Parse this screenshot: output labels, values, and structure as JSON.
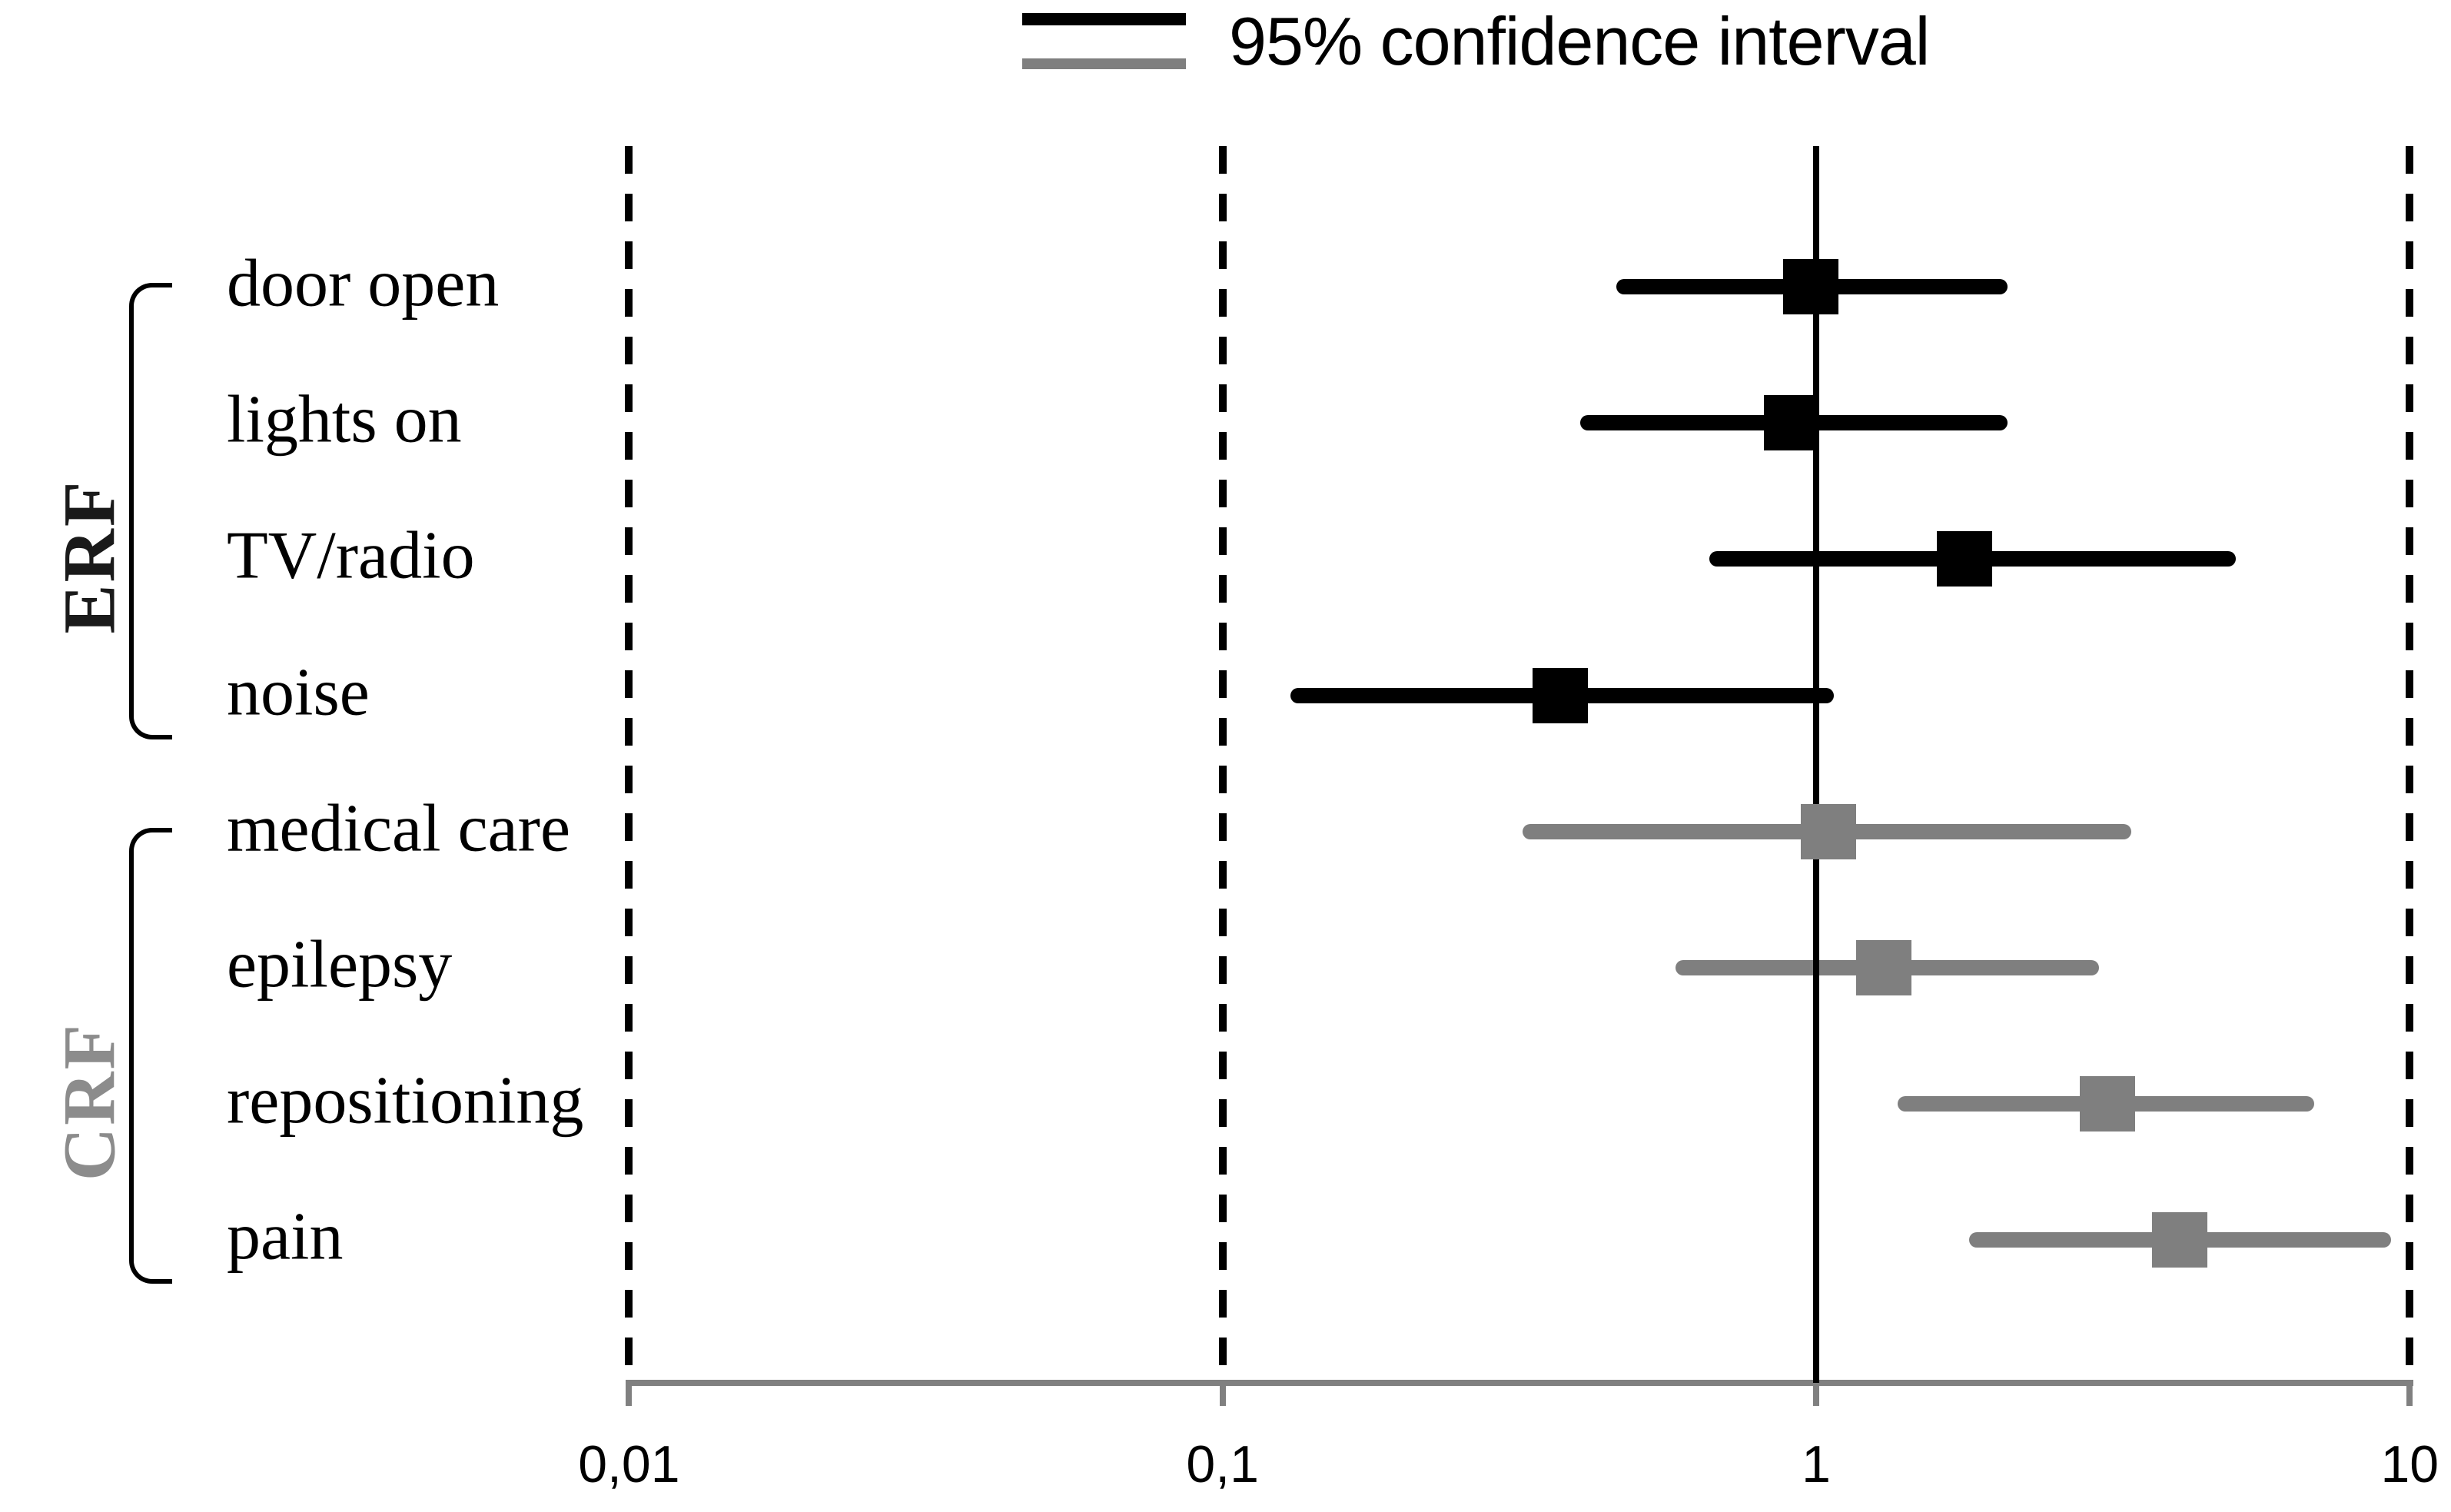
{
  "legend": {
    "label": "95% confidence interval",
    "series": [
      {
        "name": "ERF",
        "color": "#000000"
      },
      {
        "name": "CRF",
        "color": "#7f7f7f"
      }
    ]
  },
  "chart_data": {
    "type": "forest",
    "title": "",
    "xlabel": "",
    "x_axis": {
      "scale": "log",
      "min": 0.01,
      "max": 10,
      "ticks": [
        {
          "label": "0,01",
          "value": 0.01,
          "line": "dashed"
        },
        {
          "label": "0,1",
          "value": 0.1,
          "line": "dashed"
        },
        {
          "label": "1",
          "value": 1,
          "line": "solid"
        },
        {
          "label": "10",
          "value": 10,
          "line": "dashed"
        }
      ]
    },
    "legend_position": "top",
    "groups": [
      {
        "name": "ERF",
        "color": "#000000",
        "label_color": "#1a1a1a",
        "items": [
          {
            "label": "door open",
            "or": 0.98,
            "ci_low": 0.46,
            "ci_high": 2.1
          },
          {
            "label": "lights on",
            "or": 0.91,
            "ci_low": 0.4,
            "ci_high": 2.1
          },
          {
            "label": "TV/radio",
            "or": 1.78,
            "ci_low": 0.66,
            "ci_high": 5.1
          },
          {
            "label": "noise",
            "or": 0.37,
            "ci_low": 0.13,
            "ci_high": 1.07
          }
        ]
      },
      {
        "name": "CRF",
        "color": "#7f7f7f",
        "label_color": "#8c8c8c",
        "items": [
          {
            "label": "medical care",
            "or": 1.05,
            "ci_low": 0.32,
            "ci_high": 3.4
          },
          {
            "label": "epilepsy",
            "or": 1.3,
            "ci_low": 0.58,
            "ci_high": 3.0
          },
          {
            "label": "repositioning",
            "or": 3.1,
            "ci_low": 1.37,
            "ci_high": 6.9
          },
          {
            "label": "pain",
            "or": 4.1,
            "ci_low": 1.81,
            "ci_high": 9.3
          }
        ]
      }
    ]
  }
}
